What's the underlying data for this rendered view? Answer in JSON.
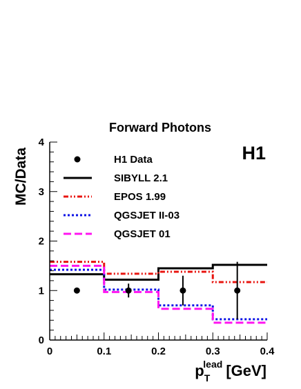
{
  "chart_data": {
    "type": "step",
    "title": "Forward Photons",
    "tag": "H1",
    "xlabel": {
      "main": "p",
      "sub": "T",
      "sup": "lead",
      "unit": "[GeV]"
    },
    "ylabel": "MC/Data",
    "xlim": [
      0,
      0.4
    ],
    "ylim": [
      0,
      4
    ],
    "xticks": [
      "0",
      "0.1",
      "0.2",
      "0.3",
      "0.4"
    ],
    "yticks": [
      "0",
      "1",
      "2",
      "3",
      "4"
    ],
    "bin_edges": [
      0,
      0.1,
      0.2,
      0.3,
      0.4
    ],
    "data": {
      "name": "H1 Data",
      "x": [
        0.05,
        0.145,
        0.245,
        0.345
      ],
      "y": [
        1.0,
        1.0,
        1.0,
        1.0
      ],
      "err": [
        0.05,
        0.14,
        0.3,
        0.58
      ]
    },
    "series": [
      {
        "name": "SIBYLL 2.1",
        "values": [
          1.33,
          1.22,
          1.45,
          1.52
        ],
        "color": "#000000",
        "dash": ""
      },
      {
        "name": "EPOS 1.99",
        "values": [
          1.58,
          1.34,
          1.38,
          1.17
        ],
        "color": "#e8140f",
        "dash": "7,3,2,3,2,3"
      },
      {
        "name": "QGSJET II-03",
        "values": [
          1.42,
          1.02,
          0.7,
          0.42
        ],
        "color": "#0b12e6",
        "dash": "3,3"
      },
      {
        "name": "QGSJET 01",
        "values": [
          1.5,
          0.97,
          0.63,
          0.35
        ],
        "color": "#ff14f0",
        "dash": "11,5"
      }
    ]
  }
}
